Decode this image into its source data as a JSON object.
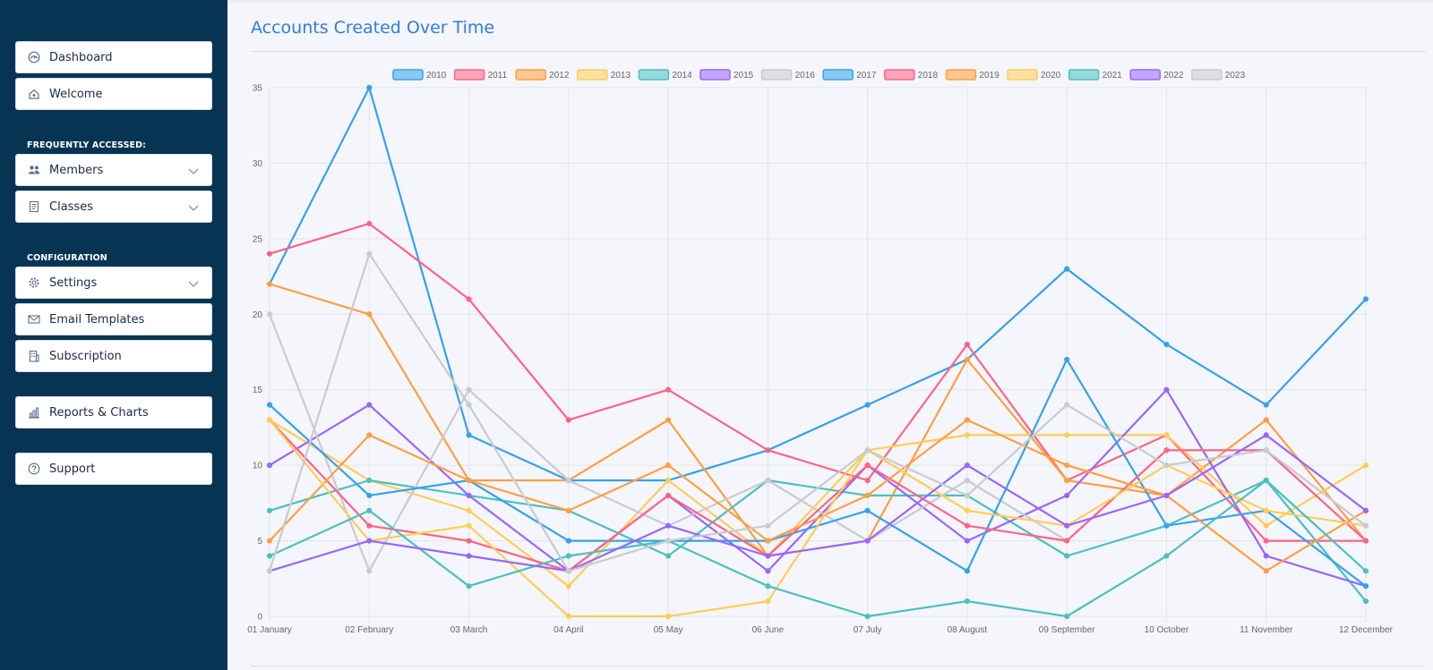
{
  "sidebar": {
    "nav": [
      {
        "label": "Dashboard",
        "icon": "dashboard-gauge-icon"
      },
      {
        "label": "Welcome",
        "icon": "home-icon"
      }
    ],
    "frequent_label": "FREQUENTLY ACCESSED:",
    "frequent": [
      {
        "label": "Members",
        "icon": "members-icon",
        "expandable": true
      },
      {
        "label": "Classes",
        "icon": "classes-icon",
        "expandable": true
      }
    ],
    "config_label": "CONFIGURATION",
    "config": [
      {
        "label": "Settings",
        "icon": "gear-icon",
        "expandable": true
      },
      {
        "label": "Email Templates",
        "icon": "email-icon"
      },
      {
        "label": "Subscription",
        "icon": "building-icon"
      }
    ],
    "reports": {
      "label": "Reports & Charts",
      "icon": "bar-chart-icon"
    },
    "support": {
      "label": "Support",
      "icon": "help-icon"
    }
  },
  "page": {
    "title": "Accounts Created Over Time"
  },
  "chart_data": {
    "type": "line",
    "title": "",
    "xlabel": "",
    "ylabel": "",
    "ylim": [
      0,
      35
    ],
    "yticks": [
      0,
      5,
      10,
      15,
      20,
      25,
      30,
      35
    ],
    "grid": true,
    "legend_position": "top",
    "categories": [
      "01 January",
      "02 February",
      "03 March",
      "04 April",
      "05 May",
      "06 June",
      "07 July",
      "08 August",
      "09 September",
      "10 October",
      "11 November",
      "12 December"
    ],
    "series": [
      {
        "name": "2010",
        "color": "#36a2eb",
        "values": [
          22,
          35,
          12,
          9,
          9,
          11,
          14,
          17,
          23,
          18,
          14,
          21
        ]
      },
      {
        "name": "2011",
        "color": "#ff6384",
        "values": [
          24,
          26,
          21,
          13,
          15,
          11,
          9,
          18,
          9,
          12,
          5,
          5
        ]
      },
      {
        "name": "2012",
        "color": "#ff9f40",
        "values": [
          22,
          20,
          9,
          9,
          13,
          4,
          5,
          17,
          9,
          8,
          13,
          5
        ]
      },
      {
        "name": "2013",
        "color": "#ffcd56",
        "values": [
          13,
          9,
          7,
          2,
          9,
          4,
          11,
          12,
          12,
          12,
          6,
          10
        ]
      },
      {
        "name": "2014",
        "color": "#4bc0c0",
        "values": [
          7,
          9,
          8,
          7,
          4,
          9,
          8,
          8,
          4,
          6,
          9,
          1
        ]
      },
      {
        "name": "2015",
        "color": "#9966ff",
        "values": [
          10,
          14,
          8,
          3,
          8,
          3,
          10,
          5,
          8,
          15,
          4,
          2
        ]
      },
      {
        "name": "2016",
        "color": "#c9cbcf",
        "values": [
          20,
          3,
          15,
          9,
          6,
          9,
          5,
          9,
          5,
          11,
          11,
          5
        ]
      },
      {
        "name": "2017",
        "color": "#36a2eb",
        "values": [
          14,
          8,
          9,
          5,
          5,
          5,
          7,
          3,
          17,
          6,
          7,
          2
        ]
      },
      {
        "name": "2018",
        "color": "#ff6384",
        "values": [
          13,
          6,
          5,
          3,
          8,
          4,
          10,
          6,
          5,
          11,
          11,
          5
        ]
      },
      {
        "name": "2019",
        "color": "#ff9f40",
        "values": [
          5,
          12,
          9,
          7,
          10,
          5,
          8,
          13,
          10,
          8,
          3,
          7
        ]
      },
      {
        "name": "2020",
        "color": "#ffcd56",
        "values": [
          13,
          5,
          6,
          0,
          0,
          1,
          11,
          7,
          6,
          10,
          7,
          6
        ]
      },
      {
        "name": "2021",
        "color": "#4bc0c0",
        "values": [
          4,
          7,
          2,
          4,
          5,
          2,
          0,
          1,
          0,
          4,
          9,
          3
        ]
      },
      {
        "name": "2022",
        "color": "#9966ff",
        "values": [
          3,
          5,
          4,
          3,
          6,
          4,
          5,
          10,
          6,
          8,
          12,
          7
        ]
      },
      {
        "name": "2023",
        "color": "#c9cbcf",
        "values": [
          3,
          24,
          14,
          3,
          5,
          6,
          11,
          8,
          14,
          10,
          11,
          6
        ]
      }
    ]
  }
}
